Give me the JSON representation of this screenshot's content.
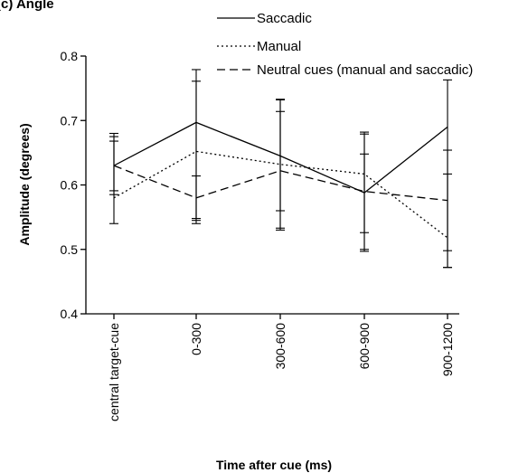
{
  "chart_data": {
    "type": "line",
    "panel_label": "(c) Angle",
    "title": "",
    "xlabel": "Time after cue (ms)",
    "ylabel": "Amplitude (degrees)",
    "categories": [
      "central target-cue",
      "0-300",
      "300-600",
      "600-900",
      "900-1200"
    ],
    "ylim": [
      0.4,
      0.8
    ],
    "yticks": [
      "0.4",
      "0.5",
      "0.6",
      "0.7",
      "0.8"
    ],
    "legend_position": "top",
    "grid": false,
    "series": [
      {
        "name": "Saccadic",
        "style": "solid",
        "values": [
          0.63,
          0.697,
          0.645,
          0.588,
          0.69
        ],
        "err_low": [
          0.585,
          0.545,
          0.53,
          0.497,
          0.472
        ],
        "err_high": [
          0.675,
          0.779,
          0.732,
          0.679,
          0.763
        ]
      },
      {
        "name": "Manual",
        "style": "dotted",
        "values": [
          0.58,
          0.652,
          0.632,
          0.617,
          0.518
        ],
        "err_low": [
          0.54,
          0.54,
          0.533,
          0.526,
          0.472
        ],
        "err_high": [
          0.68,
          0.761,
          0.714,
          0.682,
          0.617
        ]
      },
      {
        "name": "Neutral cues (manual and saccadic)",
        "style": "dashed",
        "values": [
          0.63,
          0.58,
          0.622,
          0.59,
          0.576
        ],
        "err_low": [
          0.591,
          0.548,
          0.56,
          0.5,
          0.498
        ],
        "err_high": [
          0.668,
          0.614,
          0.733,
          0.648,
          0.654
        ]
      }
    ]
  },
  "colors": {
    "line": "#000000",
    "background": "#ffffff"
  }
}
